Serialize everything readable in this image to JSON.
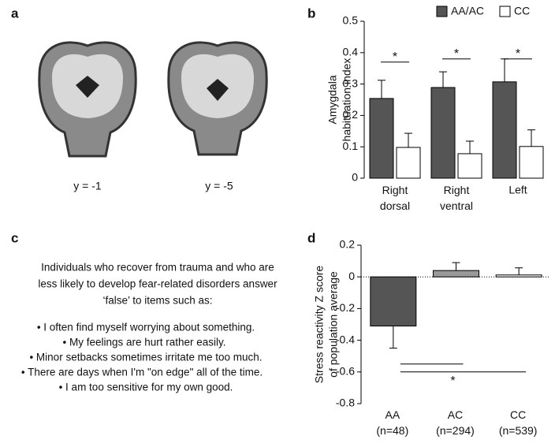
{
  "panel_a": {
    "label": "a",
    "captions": [
      "y = -1",
      "y = -5"
    ]
  },
  "panel_c": {
    "label": "c",
    "intro": [
      "Individuals who recover from trauma and who are",
      "less likely to develop fear-related disorders answer",
      "‘false’ to items such as:"
    ],
    "items": [
      "• I often find myself worrying about something.",
      "• My feelings are hurt rather easily.",
      "• Minor setbacks sometimes irritate me too much.",
      "• There are days when I'm \"on edge\" all of the time.",
      "• I am too sensitive for my own good."
    ]
  },
  "chart_data": [
    {
      "type": "bar",
      "label": "b",
      "y_label": [
        "Amygdala",
        "habituation index"
      ],
      "categories": [
        "Right dorsal",
        "Right ventral",
        "Left"
      ],
      "series": [
        {
          "name": "AA/AC",
          "color": "#555555",
          "values": [
            0.254,
            0.289,
            0.307
          ],
          "errors": [
            0.058,
            0.05,
            0.073
          ]
        },
        {
          "name": "CC",
          "color": "#ffffff",
          "values": [
            0.098,
            0.078,
            0.101
          ],
          "errors": [
            0.045,
            0.04,
            0.053
          ]
        }
      ],
      "ylim": [
        0,
        0.5
      ],
      "yticks": [
        0,
        0.1,
        0.2,
        0.3,
        0.4,
        0.5
      ],
      "annotations": [
        "*",
        "*",
        "*"
      ],
      "legend": "top"
    },
    {
      "type": "bar",
      "label": "d",
      "y_label": [
        "Stress reactivity Z score",
        "of population average"
      ],
      "categories": [
        "AA (n=48)",
        "AC (n=294)",
        "CC (n=539)"
      ],
      "values": [
        -0.31,
        0.04,
        0.012
      ],
      "errors": [
        0.14,
        0.05,
        0.045
      ],
      "colors": [
        "#555555",
        "#999999",
        "#ffffff"
      ],
      "ylim": [
        -0.8,
        0.2
      ],
      "yticks": [
        -0.8,
        -0.6,
        -0.4,
        -0.2,
        0,
        0.2
      ],
      "annotation": "*"
    }
  ]
}
